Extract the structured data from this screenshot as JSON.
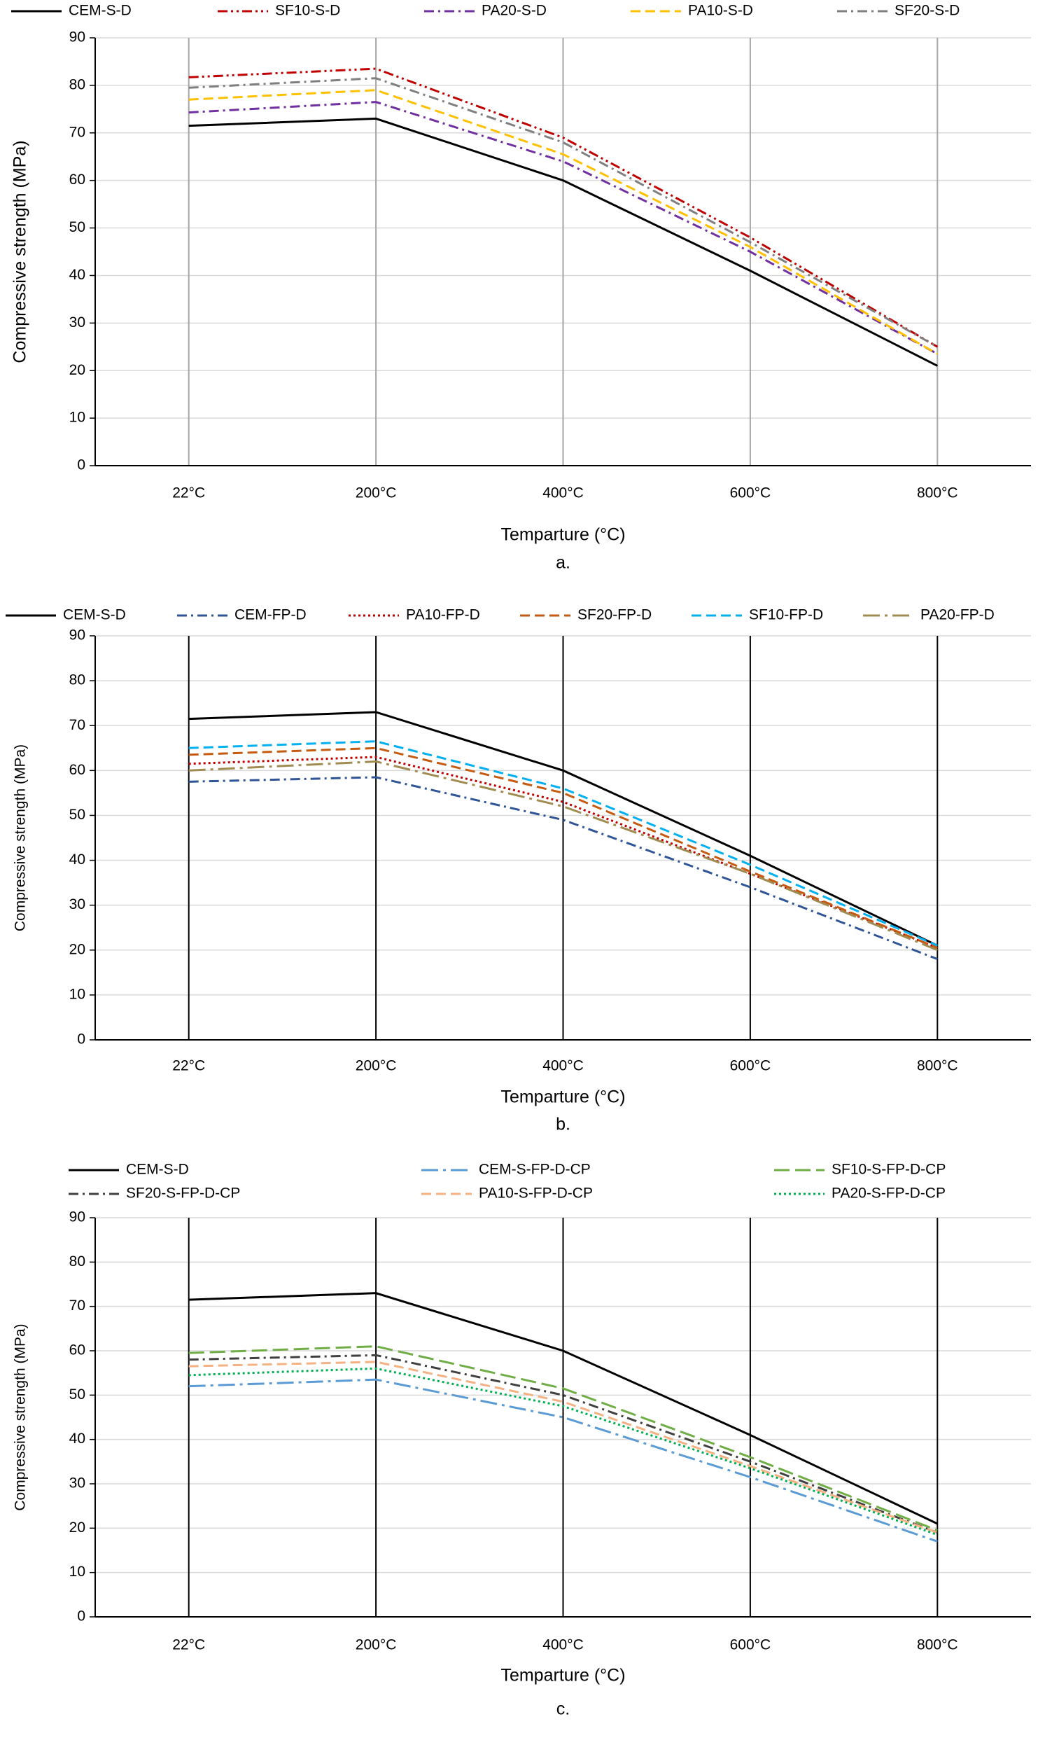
{
  "chart_data": [
    {
      "type": "line",
      "categories": [
        "22°C",
        "200°C",
        "400°C",
        "600°C",
        "800°C"
      ],
      "x_label": "Temparture (°C)",
      "y_label": "Compressive strength (MPa)",
      "caption": "a.",
      "ylim": [
        0,
        90
      ],
      "yticks": [
        0,
        10,
        20,
        30,
        40,
        50,
        60,
        70,
        80,
        90
      ],
      "grid": true,
      "category_line_color": "#a6a6a6",
      "series": [
        {
          "name": "CEM-S-D",
          "color": "#000000",
          "style": "solid",
          "values": [
            71.5,
            73,
            60,
            41,
            21
          ]
        },
        {
          "name": "SF10-S-D",
          "color": "#c00000",
          "style": "dash-dot-dot",
          "values": [
            81.7,
            83.5,
            69,
            48,
            25
          ]
        },
        {
          "name": "PA20-S-D",
          "color": "#7030a0",
          "style": "dash-dot",
          "values": [
            74.3,
            76.5,
            64,
            45,
            23.5
          ]
        },
        {
          "name": "PA10-S-D",
          "color": "#ffc000",
          "style": "dash",
          "values": [
            77,
            79,
            65.5,
            46,
            23.5
          ]
        },
        {
          "name": "SF20-S-D",
          "color": "#7f7f7f",
          "style": "dash-dot",
          "values": [
            79.5,
            81.5,
            68,
            47,
            25
          ]
        }
      ]
    },
    {
      "type": "line",
      "categories": [
        "22°C",
        "200°C",
        "400°C",
        "600°C",
        "800°C"
      ],
      "x_label": "Temparture (°C)",
      "y_label": "Compressive strength (MPa)",
      "caption": "b.",
      "ylim": [
        0,
        90
      ],
      "yticks": [
        0,
        10,
        20,
        30,
        40,
        50,
        60,
        70,
        80,
        90
      ],
      "grid": true,
      "category_line_color": "#000000",
      "series": [
        {
          "name": "CEM-S-D",
          "color": "#000000",
          "style": "solid",
          "values": [
            71.5,
            73,
            60,
            41,
            21
          ]
        },
        {
          "name": "CEM-FP-D",
          "color": "#2f5597",
          "style": "dash-dot",
          "values": [
            57.5,
            58.5,
            49,
            34,
            18
          ]
        },
        {
          "name": "PA10-FP-D",
          "color": "#c00000",
          "style": "dot",
          "values": [
            61.5,
            63,
            53,
            37,
            20.5
          ]
        },
        {
          "name": "SF20-FP-D",
          "color": "#c55a11",
          "style": "dash",
          "values": [
            63.5,
            65,
            55,
            37.5,
            20.5
          ]
        },
        {
          "name": "SF10-FP-D",
          "color": "#00b0f0",
          "style": "dash",
          "values": [
            65,
            66.5,
            56,
            39,
            21
          ]
        },
        {
          "name": "PA20-FP-D",
          "color": "#a08c50",
          "style": "long-dash-dot",
          "values": [
            60,
            62,
            52,
            37,
            20
          ]
        }
      ]
    },
    {
      "type": "line",
      "categories": [
        "22°C",
        "200°C",
        "400°C",
        "600°C",
        "800°C"
      ],
      "x_label": "Temparture (°C)",
      "y_label": "Compressive strength (MPa)",
      "caption": "c.",
      "ylim": [
        0,
        90
      ],
      "yticks": [
        0,
        10,
        20,
        30,
        40,
        50,
        60,
        70,
        80,
        90
      ],
      "grid": true,
      "category_line_color": "#000000",
      "series": [
        {
          "name": "CEM-S-D",
          "color": "#000000",
          "style": "solid",
          "values": [
            71.5,
            73,
            60,
            41,
            21
          ]
        },
        {
          "name": "CEM-S-FP-D-CP",
          "color": "#5b9bd5",
          "style": "long-dash-dot",
          "values": [
            52,
            53.5,
            45,
            31.5,
            17
          ]
        },
        {
          "name": "SF10-S-FP-D-CP",
          "color": "#70ad47",
          "style": "long-dash",
          "values": [
            59.5,
            61,
            51.5,
            36,
            19.5
          ]
        },
        {
          "name": "SF20-S-FP-D-CP",
          "color": "#404040",
          "style": "dash-dot",
          "values": [
            58,
            59,
            50,
            35,
            19
          ]
        },
        {
          "name": "PA10-S-FP-D-CP",
          "color": "#f4b183",
          "style": "dash",
          "values": [
            56.5,
            57.5,
            48.5,
            34,
            19
          ]
        },
        {
          "name": "PA20-S-FP-D-CP",
          "color": "#00b050",
          "style": "dot",
          "values": [
            54.5,
            56,
            47.5,
            33.5,
            18.5
          ]
        }
      ]
    }
  ]
}
